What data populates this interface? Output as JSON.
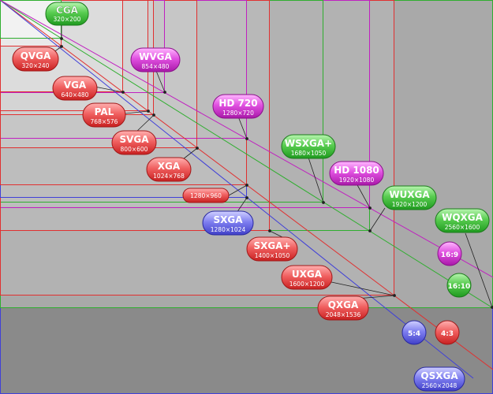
{
  "colors": {
    "red": "#e03030",
    "green": "#2fae2f",
    "magenta": "#c020c0",
    "blue": "#4040d8",
    "background_far": "#8a8a8a"
  },
  "resolutions": [
    {
      "id": "cga",
      "name": "CGA",
      "size": "320×200",
      "color": "green"
    },
    {
      "id": "qvga",
      "name": "QVGA",
      "size": "320×240",
      "color": "red"
    },
    {
      "id": "wvga",
      "name": "WVGA",
      "size": "854×480",
      "color": "magenta"
    },
    {
      "id": "vga",
      "name": "VGA",
      "size": "640×480",
      "color": "red"
    },
    {
      "id": "pal",
      "name": "PAL",
      "size": "768×576",
      "color": "red"
    },
    {
      "id": "hd720",
      "name": "HD 720",
      "size": "1280×720",
      "color": "magenta"
    },
    {
      "id": "svga",
      "name": "SVGA",
      "size": "800×600",
      "color": "red"
    },
    {
      "id": "wsxgaplus",
      "name": "WSXGA+",
      "size": "1680×1050",
      "color": "green"
    },
    {
      "id": "xga",
      "name": "XGA",
      "size": "1024×768",
      "color": "red"
    },
    {
      "id": "hd1080",
      "name": "HD 1080",
      "size": "1920×1080",
      "color": "magenta"
    },
    {
      "id": "r1280x960",
      "name": "",
      "size": "1280×960",
      "color": "red"
    },
    {
      "id": "wuxga",
      "name": "WUXGA",
      "size": "1920×1200",
      "color": "green"
    },
    {
      "id": "sxga",
      "name": "SXGA",
      "size": "1280×1024",
      "color": "blue"
    },
    {
      "id": "wqxga",
      "name": "WQXGA",
      "size": "2560×1600",
      "color": "green"
    },
    {
      "id": "sxgaplus",
      "name": "SXGA+",
      "size": "1400×1050",
      "color": "red"
    },
    {
      "id": "uxga",
      "name": "UXGA",
      "size": "1600×1200",
      "color": "red"
    },
    {
      "id": "qxga",
      "name": "QXGA",
      "size": "2048×1536",
      "color": "red"
    },
    {
      "id": "qsxga",
      "name": "QSXGA",
      "size": "2560×2048",
      "color": "blue"
    }
  ],
  "ratios": [
    {
      "id": "r16_9",
      "label": "16:9",
      "color": "magenta"
    },
    {
      "id": "r16_10",
      "label": "16:10",
      "color": "green"
    },
    {
      "id": "r5_4",
      "label": "5:4",
      "color": "blue"
    },
    {
      "id": "r4_3",
      "label": "4:3",
      "color": "red"
    }
  ]
}
